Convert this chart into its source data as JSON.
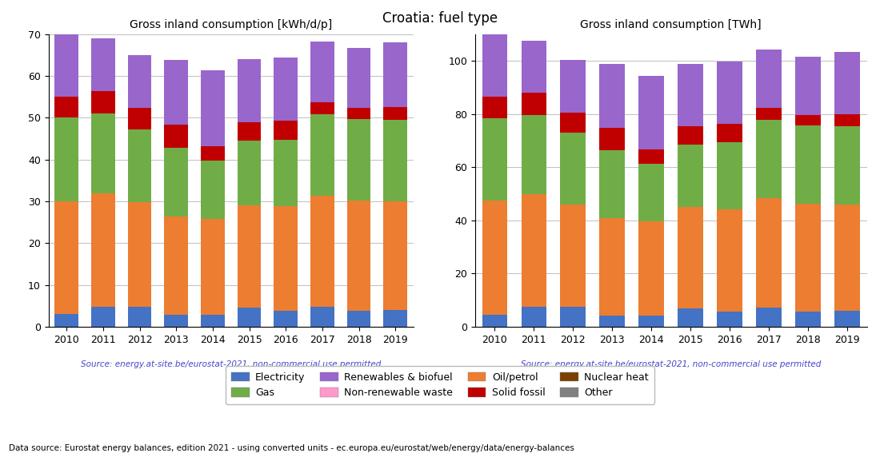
{
  "title": "Croatia: fuel type",
  "years": [
    2010,
    2011,
    2012,
    2013,
    2014,
    2015,
    2016,
    2017,
    2018,
    2019
  ],
  "left_title": "Gross inland consumption [kWh/d/p]",
  "right_title": "Gross inland consumption [TWh]",
  "source_text": "Source: energy.at-site.be/eurostat-2021, non-commercial use permitted",
  "bottom_text": "Data source: Eurostat energy balances, edition 2021 - using converted units - ec.europa.eu/eurostat/web/energy/data/energy-balances",
  "categories": [
    "Electricity",
    "Oil/petrol",
    "Gas",
    "Solid fossil",
    "Renewables & biofuel",
    "Non-renewable waste",
    "Nuclear heat",
    "Other"
  ],
  "colors": [
    "#4472c4",
    "#ed7d31",
    "#70ad47",
    "#c00000",
    "#9966cc",
    "#ff99cc",
    "#7b3f00",
    "#808080"
  ],
  "kwhd_data": {
    "Electricity": [
      3.0,
      4.8,
      4.8,
      2.8,
      2.8,
      4.5,
      3.8,
      4.8,
      3.8,
      4.0
    ],
    "Oil/petrol": [
      27.0,
      27.2,
      25.0,
      23.5,
      23.0,
      24.5,
      25.0,
      26.5,
      26.5,
      26.0
    ],
    "Gas": [
      20.0,
      19.0,
      17.5,
      16.5,
      14.0,
      15.5,
      16.0,
      19.5,
      19.5,
      19.5
    ],
    "Solid fossil": [
      5.0,
      5.5,
      5.0,
      5.5,
      3.5,
      4.5,
      4.5,
      3.0,
      2.5,
      3.0
    ],
    "Renewables & biofuel": [
      15.0,
      12.5,
      12.7,
      15.5,
      18.0,
      15.0,
      15.2,
      14.5,
      14.5,
      15.5
    ],
    "Non-renewable waste": [
      0.0,
      0.0,
      0.0,
      0.0,
      0.0,
      0.0,
      0.0,
      0.0,
      0.0,
      0.0
    ],
    "Nuclear heat": [
      0.0,
      0.0,
      0.0,
      0.0,
      0.0,
      0.0,
      0.0,
      0.0,
      0.0,
      0.0
    ],
    "Other": [
      0.0,
      0.0,
      0.0,
      0.0,
      0.0,
      0.0,
      0.0,
      0.0,
      0.0,
      0.0
    ]
  },
  "twh_data": {
    "Electricity": [
      4.5,
      7.5,
      7.5,
      4.3,
      4.3,
      7.0,
      5.8,
      7.3,
      5.8,
      6.0
    ],
    "Oil/petrol": [
      43.0,
      42.5,
      38.5,
      36.5,
      35.5,
      38.0,
      38.5,
      41.0,
      40.5,
      40.0
    ],
    "Gas": [
      31.0,
      29.5,
      27.0,
      25.5,
      21.5,
      23.5,
      25.0,
      29.5,
      29.5,
      29.5
    ],
    "Solid fossil": [
      8.0,
      8.5,
      7.5,
      8.5,
      5.5,
      7.0,
      7.0,
      4.5,
      3.8,
      4.5
    ],
    "Renewables & biofuel": [
      23.5,
      19.5,
      20.0,
      24.0,
      27.5,
      23.5,
      23.5,
      22.0,
      22.0,
      23.5
    ],
    "Non-renewable waste": [
      0.0,
      0.0,
      0.0,
      0.0,
      0.0,
      0.0,
      0.0,
      0.0,
      0.0,
      0.0
    ],
    "Nuclear heat": [
      0.0,
      0.0,
      0.0,
      0.0,
      0.0,
      0.0,
      0.0,
      0.0,
      0.0,
      0.0
    ],
    "Other": [
      0.0,
      0.0,
      0.0,
      0.0,
      0.0,
      0.0,
      0.0,
      0.0,
      0.0,
      0.0
    ]
  },
  "left_ylim": [
    0,
    70
  ],
  "right_ylim": [
    0,
    110
  ],
  "left_yticks": [
    0,
    10,
    20,
    30,
    40,
    50,
    60,
    70
  ],
  "right_yticks": [
    0,
    20,
    40,
    60,
    80,
    100
  ],
  "source_color": "#4444cc"
}
